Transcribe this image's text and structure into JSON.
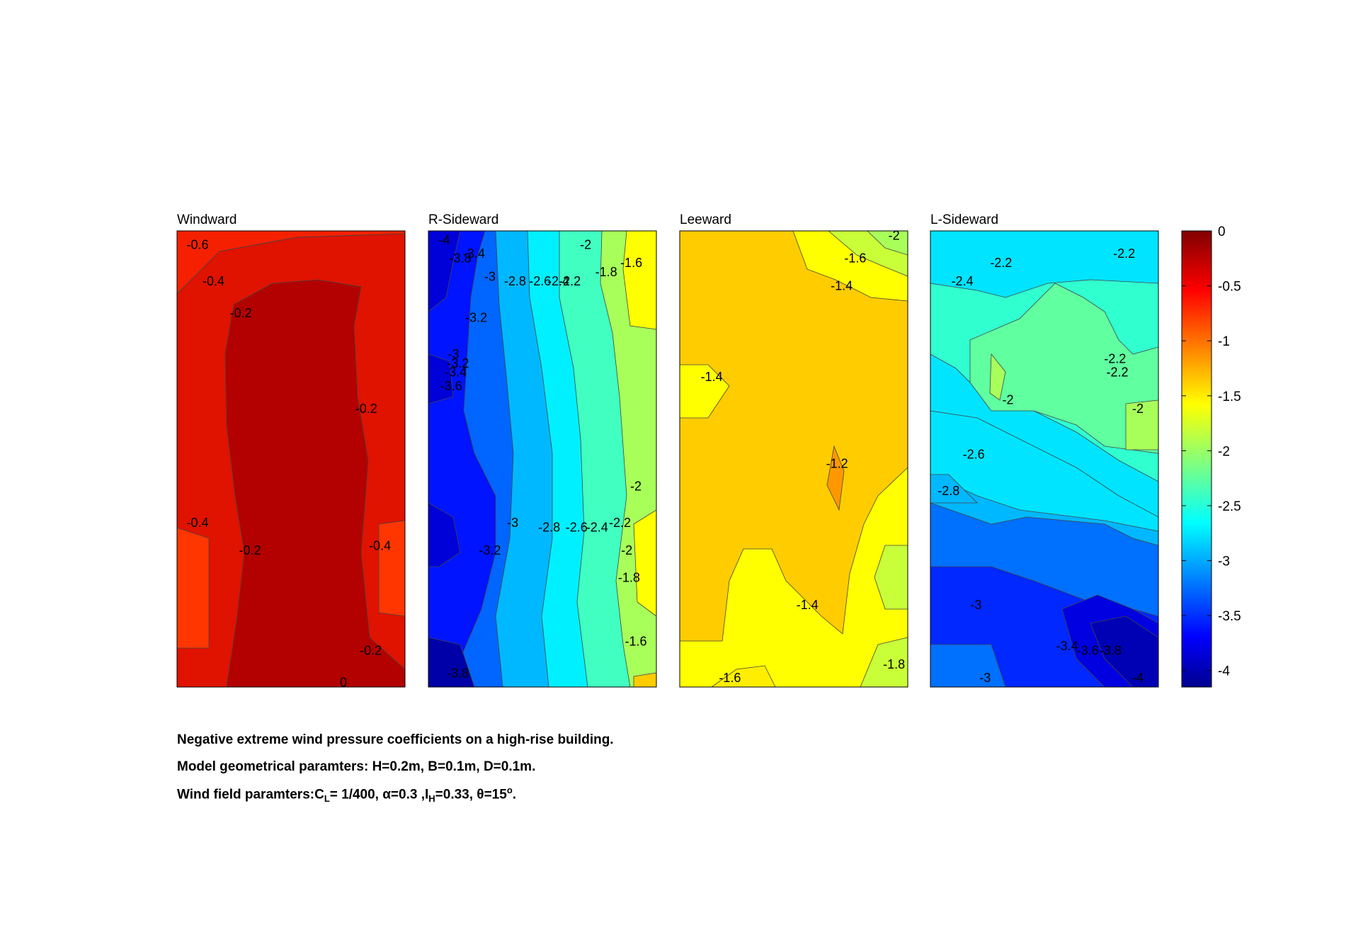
{
  "chart_data": [
    {
      "type": "heatmap",
      "title": "Windward",
      "colors": [
        "#b30000",
        "#b30000",
        "#e01200",
        "#f52000",
        "#ff3600",
        "#ff3600"
      ],
      "labels": [
        {
          "text": "-0.6",
          "x": 0.09,
          "y": 0.97
        },
        {
          "text": "-0.4",
          "x": 0.16,
          "y": 0.89
        },
        {
          "text": "-0.2",
          "x": 0.28,
          "y": 0.82
        },
        {
          "text": "-0.2",
          "x": 0.83,
          "y": 0.61
        },
        {
          "text": "-0.4",
          "x": 0.09,
          "y": 0.36
        },
        {
          "text": "-0.2",
          "x": 0.32,
          "y": 0.3
        },
        {
          "text": "-0.4",
          "x": 0.89,
          "y": 0.31
        },
        {
          "text": "-0.2",
          "x": 0.85,
          "y": 0.08
        },
        {
          "text": "0",
          "x": 0.73,
          "y": 0.01
        }
      ]
    },
    {
      "type": "heatmap",
      "title": "R-Sideward",
      "colors": [
        "#0000a8",
        "#0014ff",
        "#0066ff",
        "#00b8ff",
        "#00f0ff",
        "#40ffc0",
        "#a8ff5a",
        "#ffff00"
      ],
      "labels": [
        {
          "text": "-4",
          "x": 0.07,
          "y": 0.98
        },
        {
          "text": "-3.8",
          "x": 0.14,
          "y": 0.94
        },
        {
          "text": "-3.4",
          "x": 0.2,
          "y": 0.95
        },
        {
          "text": "-3",
          "x": 0.27,
          "y": 0.9
        },
        {
          "text": "-2.8",
          "x": 0.38,
          "y": 0.89
        },
        {
          "text": "-2.6",
          "x": 0.49,
          "y": 0.89
        },
        {
          "text": "-2.4",
          "x": 0.57,
          "y": 0.89
        },
        {
          "text": "-2.2",
          "x": 0.62,
          "y": 0.89
        },
        {
          "text": "-2",
          "x": 0.69,
          "y": 0.97
        },
        {
          "text": "-1.8",
          "x": 0.78,
          "y": 0.91
        },
        {
          "text": "-1.6",
          "x": 0.89,
          "y": 0.93
        },
        {
          "text": "-3.2",
          "x": 0.21,
          "y": 0.81
        },
        {
          "text": "-3",
          "x": 0.11,
          "y": 0.73
        },
        {
          "text": "-3.2",
          "x": 0.13,
          "y": 0.71
        },
        {
          "text": "-3.4",
          "x": 0.12,
          "y": 0.69
        },
        {
          "text": "-3.6",
          "x": 0.1,
          "y": 0.66
        },
        {
          "text": "-2",
          "x": 0.91,
          "y": 0.44
        },
        {
          "text": "-3",
          "x": 0.37,
          "y": 0.36
        },
        {
          "text": "-2.8",
          "x": 0.53,
          "y": 0.35
        },
        {
          "text": "-2.6",
          "x": 0.65,
          "y": 0.35
        },
        {
          "text": "-2.4",
          "x": 0.74,
          "y": 0.35
        },
        {
          "text": "-2.2",
          "x": 0.84,
          "y": 0.36
        },
        {
          "text": "-3.2",
          "x": 0.27,
          "y": 0.3
        },
        {
          "text": "-2",
          "x": 0.87,
          "y": 0.3
        },
        {
          "text": "-1.8",
          "x": 0.88,
          "y": 0.24
        },
        {
          "text": "-1.6",
          "x": 0.91,
          "y": 0.1
        },
        {
          "text": "-3.8",
          "x": 0.13,
          "y": 0.03
        }
      ]
    },
    {
      "type": "heatmap",
      "title": "Leeward",
      "colors": [
        "#ff8c00",
        "#ffa800",
        "#ffcc00",
        "#ffff00",
        "#c8ff38",
        "#a8ff5a"
      ],
      "labels": [
        {
          "text": "-2",
          "x": 0.94,
          "y": 0.99
        },
        {
          "text": "-1.6",
          "x": 0.77,
          "y": 0.94
        },
        {
          "text": "-1.4",
          "x": 0.71,
          "y": 0.88
        },
        {
          "text": "-1.4",
          "x": 0.14,
          "y": 0.68
        },
        {
          "text": "-1.2",
          "x": 0.69,
          "y": 0.49
        },
        {
          "text": "-1.4",
          "x": 0.56,
          "y": 0.18
        },
        {
          "text": "-1.6",
          "x": 0.22,
          "y": 0.02
        },
        {
          "text": "-1.8",
          "x": 0.94,
          "y": 0.05
        }
      ]
    },
    {
      "type": "heatmap",
      "title": "L-Sideward",
      "colors": [
        "#0000b4",
        "#0028ff",
        "#0070ff",
        "#00b8ff",
        "#00e4ff",
        "#30ffd0",
        "#60ffa0",
        "#a8ff5a"
      ],
      "labels": [
        {
          "text": "-2.2",
          "x": 0.31,
          "y": 0.93
        },
        {
          "text": "-2.2",
          "x": 0.85,
          "y": 0.95
        },
        {
          "text": "-2.4",
          "x": 0.14,
          "y": 0.89
        },
        {
          "text": "-2.2",
          "x": 0.81,
          "y": 0.72
        },
        {
          "text": "-2.2",
          "x": 0.82,
          "y": 0.69
        },
        {
          "text": "-2",
          "x": 0.34,
          "y": 0.63
        },
        {
          "text": "-2",
          "x": 0.91,
          "y": 0.61
        },
        {
          "text": "-2.6",
          "x": 0.19,
          "y": 0.51
        },
        {
          "text": "-2.8",
          "x": 0.08,
          "y": 0.43
        },
        {
          "text": "-3",
          "x": 0.2,
          "y": 0.18
        },
        {
          "text": "-3.4",
          "x": 0.6,
          "y": 0.09
        },
        {
          "text": "-3.6",
          "x": 0.69,
          "y": 0.08
        },
        {
          "text": "-3.8",
          "x": 0.79,
          "y": 0.08
        },
        {
          "text": "-3",
          "x": 0.24,
          "y": 0.02
        },
        {
          "text": "-4",
          "x": 0.91,
          "y": 0.02
        }
      ]
    }
  ],
  "colorbar": {
    "min": -4.15,
    "max": 0,
    "ticks": [
      0,
      -0.5,
      -1,
      -1.5,
      -2,
      -2.5,
      -3,
      -3.5,
      -4
    ],
    "tick_labels": [
      "0",
      "-0.5",
      "-1",
      "-1.5",
      "-2",
      "-2.5",
      "-3",
      "-3.5",
      "-4"
    ]
  },
  "caption": {
    "line1": "Negative extreme wind pressure coefficients on a high-rise building.",
    "line2": "Model geometrical paramters: H=0.2m, B=0.1m, D=0.1m.",
    "line3_a": "Wind field paramters:C",
    "line3_sub1": "L",
    "line3_b": "= 1/400, α=0.3 ,I",
    "line3_sub2": "H",
    "line3_c": "=0.33, θ=15",
    "line3_sup": "o",
    "line3_d": "."
  }
}
